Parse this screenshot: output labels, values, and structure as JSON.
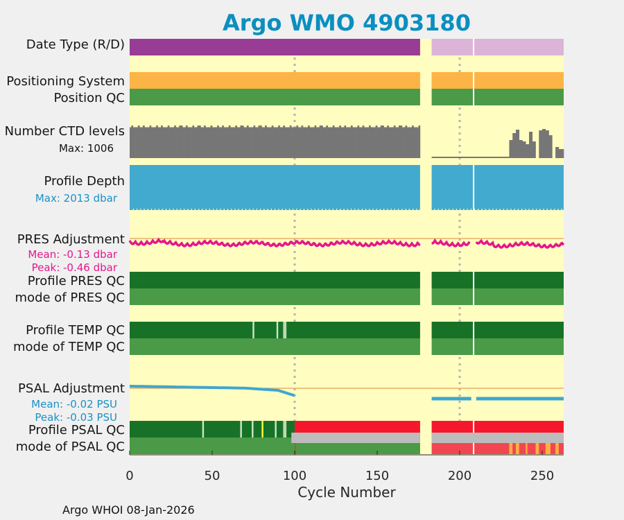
{
  "chart_data": {
    "type": "timeline",
    "title": "Argo WMO 4903180",
    "xlabel": "Cycle Number",
    "xlim": [
      0,
      263
    ],
    "xticks": [
      "0",
      "50",
      "100",
      "150",
      "200",
      "250"
    ],
    "footer": "Argo WHOI 08-Jan-2026",
    "gap_cycles": [
      177,
      182
    ],
    "rows": [
      {
        "label": "Date Type (R/D)",
        "kind": "bar",
        "segments": [
          {
            "from": 0,
            "to": 176,
            "color": "#983c96"
          },
          {
            "from": 183,
            "to": 263,
            "color": "#dcb4d8"
          }
        ]
      },
      {
        "label": "Positioning System",
        "kind": "bar",
        "segments": [
          {
            "from": 0,
            "to": 176,
            "color": "#fdb446"
          },
          {
            "from": 183,
            "to": 263,
            "color": "#fdb446"
          }
        ]
      },
      {
        "label": "Position QC",
        "kind": "bar",
        "segments": [
          {
            "from": 0,
            "to": 176,
            "color": "#4a9a48"
          },
          {
            "from": 183,
            "to": 263,
            "color": "#4a9a48"
          }
        ]
      },
      {
        "label": "Number CTD levels",
        "kind": "histogram",
        "sublabel": "Max: 1006",
        "max": 1006
      },
      {
        "label": "Profile Depth",
        "kind": "bar",
        "sublabel": "Max: 2013 dbar",
        "max_dbar": 2013,
        "segments": [
          {
            "from": 0,
            "to": 176,
            "color": "#42aacf"
          },
          {
            "from": 183,
            "to": 263,
            "color": "#42aacf"
          }
        ]
      },
      {
        "label": "PRES Adjustment",
        "kind": "line",
        "sublabels": [
          "Mean: -0.13 dbar",
          "Peak: -0.46 dbar"
        ],
        "mean": -0.13,
        "peak": -0.46
      },
      {
        "label": "Profile PRES QC",
        "kind": "bar",
        "segments": [
          {
            "from": 0,
            "to": 176,
            "color": "#177227"
          },
          {
            "from": 183,
            "to": 263,
            "color": "#177227"
          }
        ]
      },
      {
        "label": "mode of PRES QC",
        "kind": "bar",
        "segments": [
          {
            "from": 0,
            "to": 176,
            "color": "#4a9a48"
          },
          {
            "from": 183,
            "to": 263,
            "color": "#4a9a48"
          }
        ]
      },
      {
        "label": "Profile TEMP QC",
        "kind": "bar",
        "segments": [
          {
            "from": 0,
            "to": 176,
            "color": "#177227"
          },
          {
            "from": 183,
            "to": 263,
            "color": "#177227"
          }
        ]
      },
      {
        "label": "mode of TEMP QC",
        "kind": "bar",
        "segments": [
          {
            "from": 0,
            "to": 176,
            "color": "#4a9a48"
          },
          {
            "from": 183,
            "to": 263,
            "color": "#4a9a48"
          }
        ]
      },
      {
        "label": "PSAL Adjustment",
        "kind": "line",
        "sublabels": [
          "Mean: -0.02 PSU",
          "Peak: -0.03 PSU"
        ],
        "mean": -0.02,
        "peak": -0.03
      },
      {
        "label": "Profile PSAL QC",
        "kind": "bar",
        "segments": [
          {
            "from": 0,
            "to": 100,
            "color": "#177227"
          },
          {
            "from": 100,
            "to": 176,
            "color": "#f7172c"
          },
          {
            "from": 183,
            "to": 263,
            "color": "#f7172c"
          }
        ]
      },
      {
        "label": "mode of PSAL QC",
        "kind": "bar",
        "segments": [
          {
            "from": 0,
            "to": 176,
            "color": "#4a9a48"
          },
          {
            "from": 183,
            "to": 263,
            "color": "#f24552"
          }
        ]
      }
    ]
  }
}
